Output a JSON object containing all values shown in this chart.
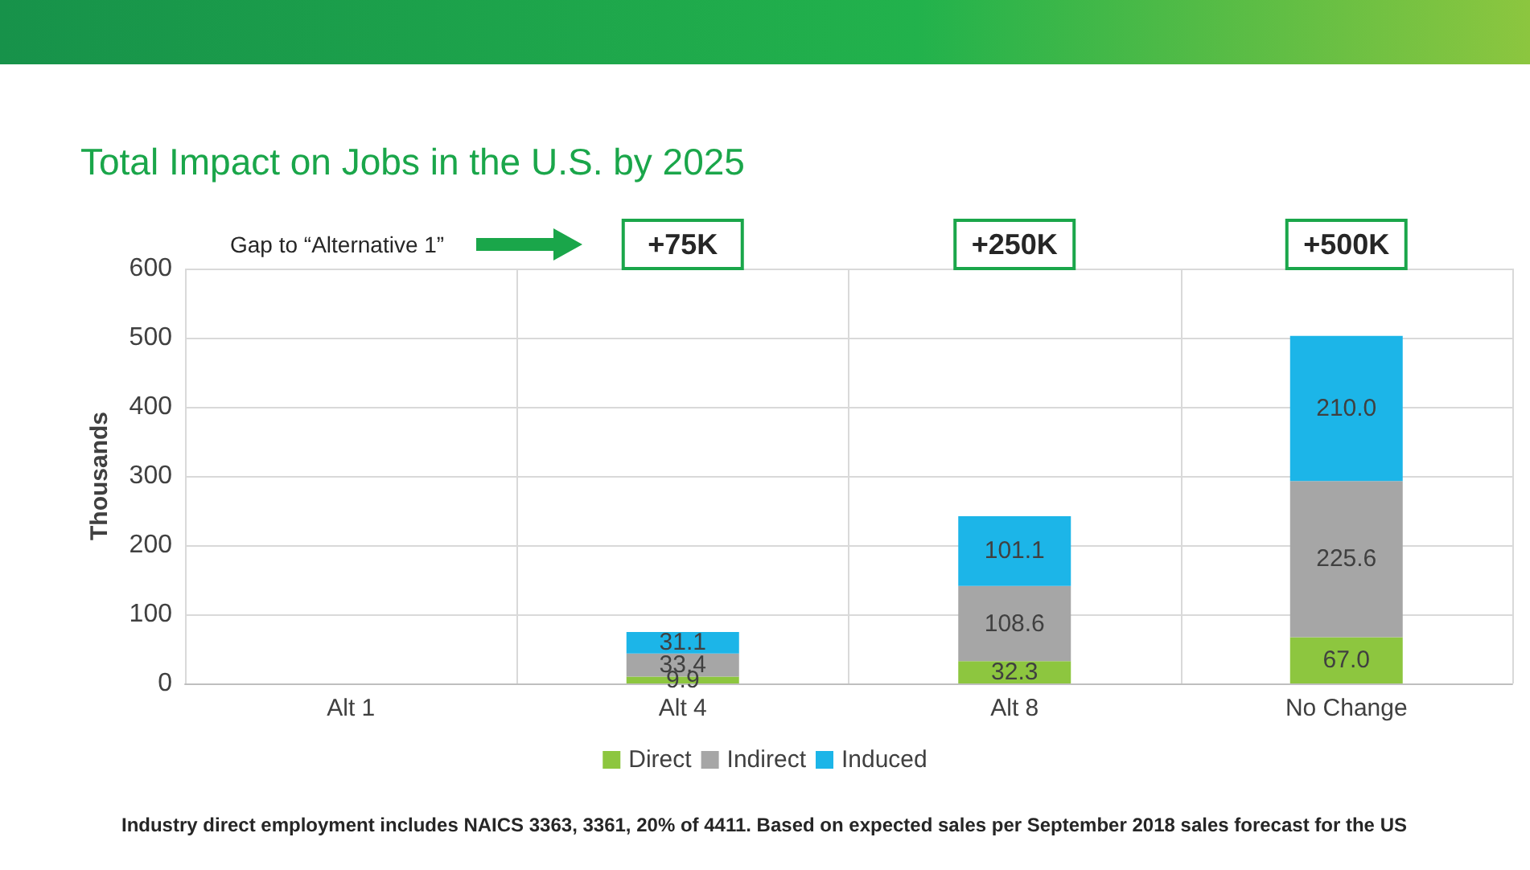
{
  "chart_data": {
    "type": "bar",
    "stacked": true,
    "title": "Total Impact on Jobs in the U.S. by 2025",
    "ylabel": "Thousands",
    "categories": [
      "Alt 1",
      "Alt 4",
      "Alt 8",
      "No Change"
    ],
    "series": [
      {
        "name": "Direct",
        "color": "#8dc63f",
        "values": [
          null,
          9.9,
          32.3,
          67.0
        ],
        "value_labels": [
          null,
          "9.9",
          "32.3",
          "67.0"
        ]
      },
      {
        "name": "Indirect",
        "color": "#a6a6a6",
        "values": [
          null,
          33.4,
          108.6,
          225.6
        ],
        "value_labels": [
          null,
          "33.4",
          "108.6",
          "225.6"
        ]
      },
      {
        "name": "Induced",
        "color": "#1cb5e8",
        "values": [
          null,
          31.1,
          101.1,
          210.0
        ],
        "value_labels": [
          null,
          "31.1",
          "101.1",
          "210.0"
        ]
      }
    ],
    "ylim": [
      0,
      600
    ],
    "yticks": [
      0,
      100,
      200,
      300,
      400,
      500,
      600
    ],
    "grid": true,
    "legend": "bottom",
    "annotations": [
      "Gap to “Alternative 1”",
      "+75K",
      "+250K",
      "+500K",
      "Industry direct employment includes NAICS 3363, 3361, 20% of 4411. Based on expected sales per September 2018 sales forecast for the US"
    ]
  }
}
